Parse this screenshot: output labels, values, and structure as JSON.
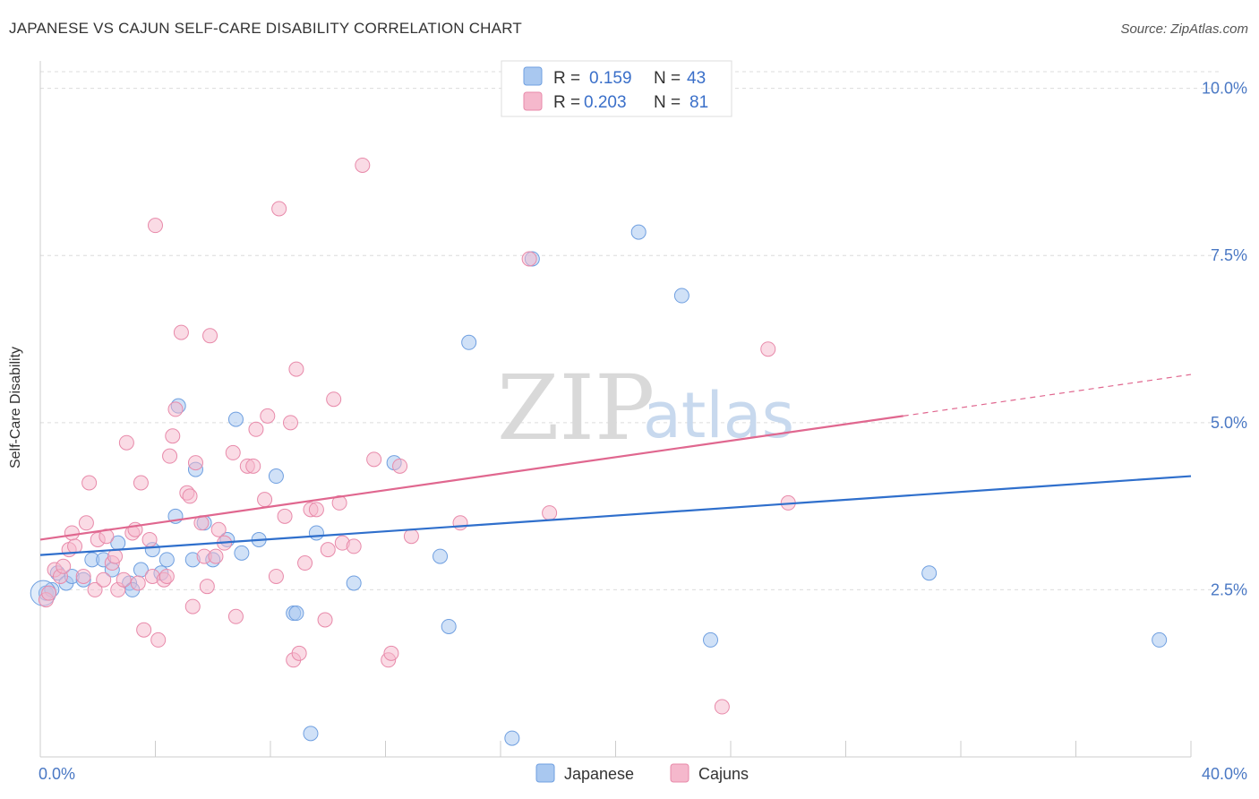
{
  "title": "JAPANESE VS CAJUN SELF-CARE DISABILITY CORRELATION CHART",
  "source": "Source: ZipAtlas.com",
  "watermark": {
    "zip": "ZIP",
    "atlas": "atlas"
  },
  "colors": {
    "japanese": "#a9c8f0",
    "japanese_stroke": "#6f9fe0",
    "japanese_line": "#2f6fcc",
    "cajun": "#f5b8cc",
    "cajun_stroke": "#e88aaa",
    "cajun_line": "#e0678f"
  },
  "legend": {
    "rows": [
      {
        "r_label": "R =",
        "r_value": "0.159",
        "n_label": "N =",
        "n_value": "43"
      },
      {
        "r_label": "R =",
        "r_value": "0.203",
        "n_label": "N =",
        "n_value": "81"
      }
    ]
  },
  "chart_data": {
    "type": "scatter",
    "ylabel": "Self-Care Disability",
    "xlim": [
      0,
      40
    ],
    "ylim": [
      0,
      10.25
    ],
    "x_ticks": [
      "0.0%",
      "40.0%"
    ],
    "y_ticks": [
      {
        "value": 2.5,
        "label": "2.5%"
      },
      {
        "value": 5.0,
        "label": "5.0%"
      },
      {
        "value": 7.5,
        "label": "7.5%"
      },
      {
        "value": 10.0,
        "label": "10.0%"
      }
    ],
    "grid": true,
    "legend_position": "top-center",
    "series": [
      {
        "name": "Japanese",
        "trend": {
          "x0": 0,
          "y0": 3.02,
          "x1": 40,
          "y1": 4.2
        },
        "points": [
          [
            0.2,
            2.45
          ],
          [
            0.4,
            2.5
          ],
          [
            0.6,
            2.75
          ],
          [
            0.9,
            2.6
          ],
          [
            1.1,
            2.7
          ],
          [
            1.5,
            2.65
          ],
          [
            1.8,
            2.95
          ],
          [
            2.2,
            2.95
          ],
          [
            2.5,
            2.8
          ],
          [
            2.7,
            3.2
          ],
          [
            3.1,
            2.6
          ],
          [
            3.2,
            2.5
          ],
          [
            3.5,
            2.8
          ],
          [
            3.9,
            3.1
          ],
          [
            4.2,
            2.75
          ],
          [
            4.4,
            2.95
          ],
          [
            4.7,
            3.6
          ],
          [
            4.8,
            5.25
          ],
          [
            5.3,
            2.95
          ],
          [
            5.4,
            4.3
          ],
          [
            5.7,
            3.5
          ],
          [
            6.0,
            2.95
          ],
          [
            6.5,
            3.25
          ],
          [
            6.8,
            5.05
          ],
          [
            7.0,
            3.05
          ],
          [
            7.6,
            3.25
          ],
          [
            8.2,
            4.2
          ],
          [
            8.8,
            2.15
          ],
          [
            8.9,
            2.15
          ],
          [
            9.4,
            0.35
          ],
          [
            9.6,
            3.35
          ],
          [
            10.9,
            2.6
          ],
          [
            12.3,
            4.4
          ],
          [
            13.9,
            3.0
          ],
          [
            14.2,
            1.95
          ],
          [
            14.9,
            6.2
          ],
          [
            16.4,
            0.28
          ],
          [
            17.1,
            7.45
          ],
          [
            20.8,
            7.85
          ],
          [
            22.3,
            6.9
          ],
          [
            23.3,
            1.75
          ],
          [
            30.9,
            2.75
          ],
          [
            38.9,
            1.75
          ]
        ]
      },
      {
        "name": "Cajuns",
        "trend": {
          "x0": 0,
          "y0": 3.25,
          "x1": 30,
          "y1": 5.1
        },
        "trend_dashed": {
          "x0": 30,
          "y0": 5.1,
          "x1": 40,
          "y1": 5.72
        },
        "points": [
          [
            0.2,
            2.35
          ],
          [
            0.3,
            2.45
          ],
          [
            0.5,
            2.8
          ],
          [
            0.7,
            2.7
          ],
          [
            0.8,
            2.85
          ],
          [
            1.0,
            3.1
          ],
          [
            1.1,
            3.35
          ],
          [
            1.2,
            3.15
          ],
          [
            1.5,
            2.7
          ],
          [
            1.6,
            3.5
          ],
          [
            1.7,
            4.1
          ],
          [
            1.9,
            2.5
          ],
          [
            2.0,
            3.25
          ],
          [
            2.2,
            2.65
          ],
          [
            2.3,
            3.3
          ],
          [
            2.5,
            2.9
          ],
          [
            2.6,
            3.0
          ],
          [
            2.7,
            2.5
          ],
          [
            2.9,
            2.65
          ],
          [
            3.0,
            4.7
          ],
          [
            3.2,
            3.35
          ],
          [
            3.3,
            3.4
          ],
          [
            3.4,
            2.6
          ],
          [
            3.5,
            4.1
          ],
          [
            3.6,
            1.9
          ],
          [
            3.8,
            3.25
          ],
          [
            3.9,
            2.7
          ],
          [
            4.0,
            7.95
          ],
          [
            4.1,
            1.75
          ],
          [
            4.3,
            2.65
          ],
          [
            4.4,
            2.7
          ],
          [
            4.5,
            4.5
          ],
          [
            4.6,
            4.8
          ],
          [
            4.7,
            5.2
          ],
          [
            4.9,
            6.35
          ],
          [
            5.1,
            3.95
          ],
          [
            5.2,
            3.9
          ],
          [
            5.3,
            2.25
          ],
          [
            5.4,
            4.4
          ],
          [
            5.6,
            3.5
          ],
          [
            5.7,
            3.0
          ],
          [
            5.8,
            2.55
          ],
          [
            5.9,
            6.3
          ],
          [
            6.1,
            3.0
          ],
          [
            6.2,
            3.4
          ],
          [
            6.4,
            3.2
          ],
          [
            6.7,
            4.55
          ],
          [
            6.8,
            2.1
          ],
          [
            7.2,
            4.35
          ],
          [
            7.4,
            4.35
          ],
          [
            7.5,
            4.9
          ],
          [
            7.8,
            3.85
          ],
          [
            7.9,
            5.1
          ],
          [
            8.2,
            2.7
          ],
          [
            8.3,
            8.2
          ],
          [
            8.5,
            3.6
          ],
          [
            8.7,
            5.0
          ],
          [
            8.8,
            1.45
          ],
          [
            8.9,
            5.8
          ],
          [
            9.0,
            1.55
          ],
          [
            9.2,
            2.9
          ],
          [
            9.4,
            3.7
          ],
          [
            9.6,
            3.7
          ],
          [
            9.9,
            2.05
          ],
          [
            10.0,
            3.1
          ],
          [
            10.2,
            5.35
          ],
          [
            10.4,
            3.8
          ],
          [
            10.5,
            3.2
          ],
          [
            10.9,
            3.15
          ],
          [
            11.2,
            8.85
          ],
          [
            11.6,
            4.45
          ],
          [
            12.1,
            1.45
          ],
          [
            12.2,
            1.55
          ],
          [
            12.5,
            4.35
          ],
          [
            12.9,
            3.3
          ],
          [
            14.6,
            3.5
          ],
          [
            17.0,
            7.45
          ],
          [
            17.7,
            3.65
          ],
          [
            23.7,
            0.75
          ],
          [
            25.3,
            6.1
          ],
          [
            26.0,
            3.8
          ]
        ]
      }
    ]
  }
}
